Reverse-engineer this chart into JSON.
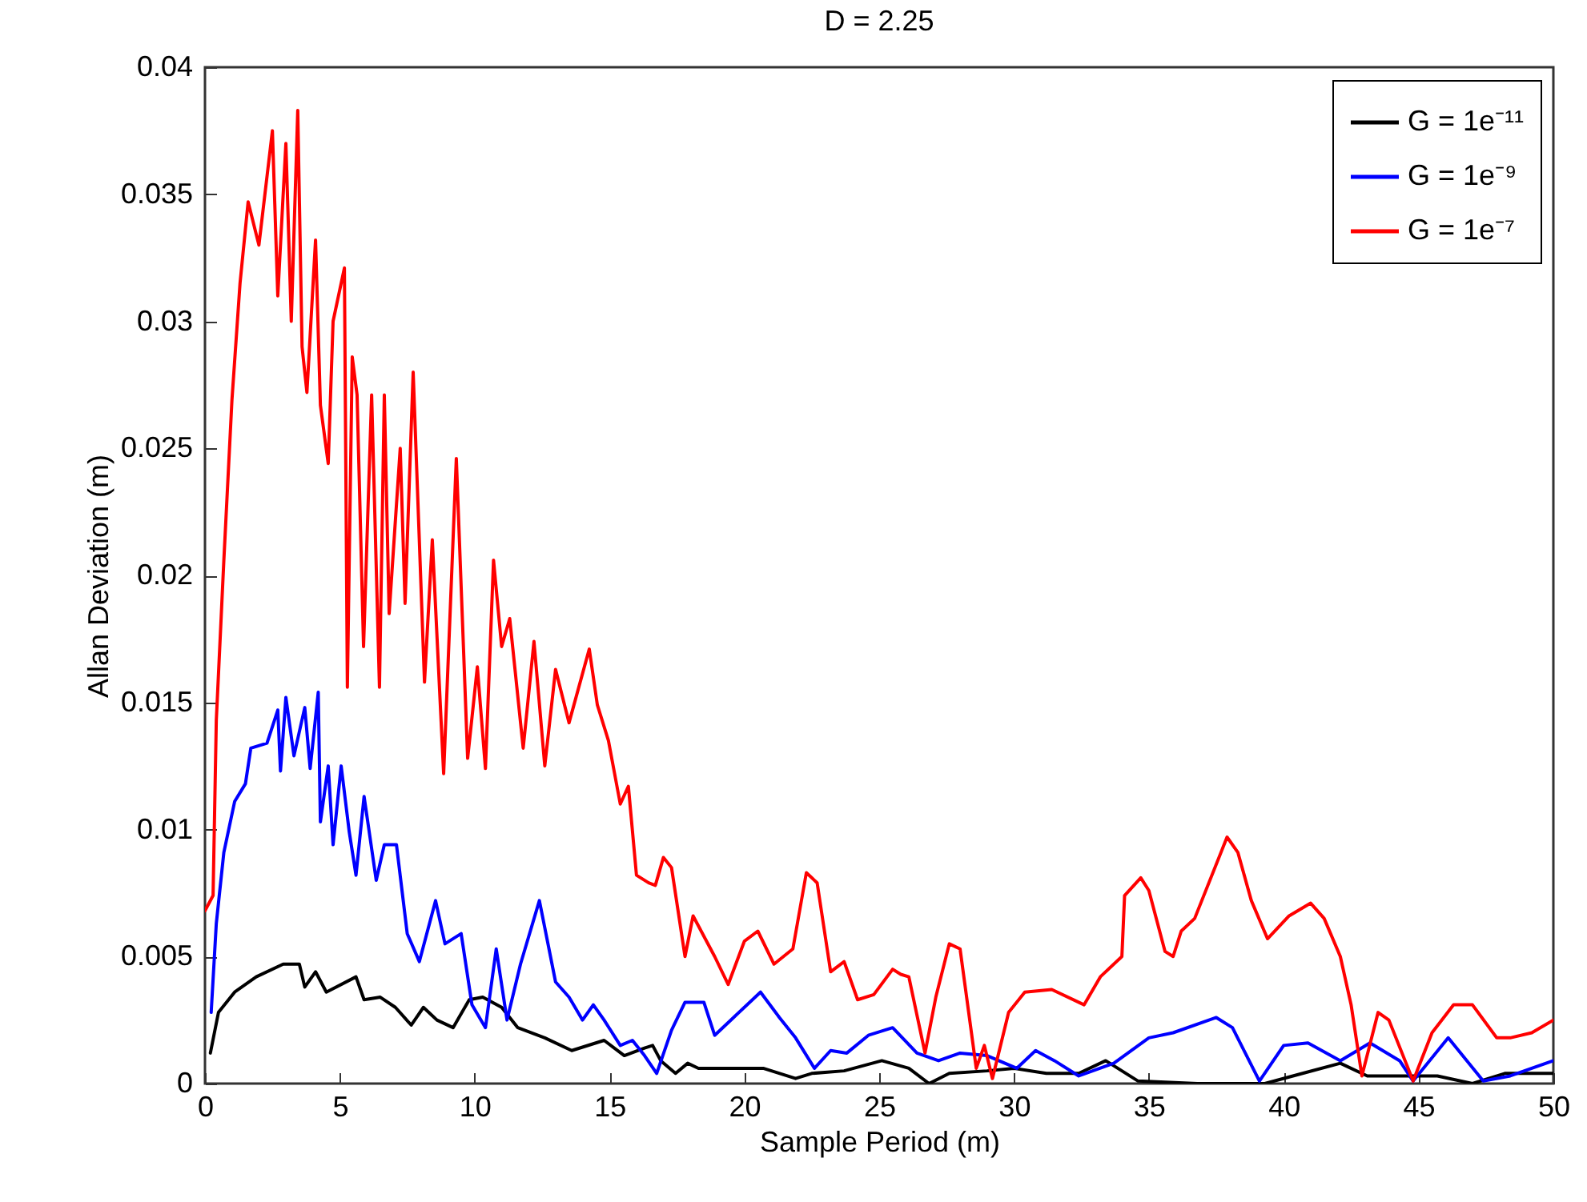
{
  "chart_data": {
    "type": "line",
    "title": "D = 2.25",
    "xlabel": "Sample Period (m)",
    "ylabel": "Allan Deviation (m)",
    "xlim": [
      0,
      50
    ],
    "xticks": [
      0,
      5,
      10,
      15,
      20,
      25,
      30,
      35,
      40,
      45,
      50
    ],
    "ylim": [
      0,
      0.04
    ],
    "yticks": [
      0,
      0.005,
      0.01,
      0.015,
      0.02,
      0.025,
      0.03,
      0.035,
      0.04
    ],
    "grid": false,
    "legend": "top right",
    "marker": "none",
    "line_style": "solid",
    "series": [
      {
        "name": "G = 1e⁻¹¹",
        "color": "#000000",
        "x": [
          0.2,
          0.5,
          1.1,
          1.9,
          2.9,
          3.5,
          3.7,
          4.1,
          4.5,
          5.6,
          5.9,
          6.5,
          7.06,
          7.65,
          8.1,
          8.6,
          9.2,
          9.8,
          10.3,
          11.0,
          11.6,
          12.6,
          13.6,
          14.8,
          15.55,
          16.3,
          16.6,
          16.9,
          17.45,
          17.9,
          18.3,
          19.9,
          20.7,
          21.9,
          22.5,
          23.7,
          25.1,
          26.1,
          26.85,
          27.6,
          29.0,
          30.0,
          31.2,
          32.4,
          33.4,
          34.6,
          36.8,
          39.3,
          40.7,
          42.1,
          43.1,
          44.7,
          45.7,
          47.0,
          48.2,
          50
        ],
        "values": [
          0.0012,
          0.0028,
          0.0036,
          0.0042,
          0.0047,
          0.0047,
          0.0038,
          0.0044,
          0.0036,
          0.0042,
          0.0033,
          0.0034,
          0.003,
          0.0023,
          0.003,
          0.0025,
          0.0022,
          0.0033,
          0.0034,
          0.003,
          0.0022,
          0.0018,
          0.0013,
          0.0017,
          0.0011,
          0.0014,
          0.0015,
          0.0009,
          0.0004,
          0.0008,
          0.0006,
          0.0006,
          0.0006,
          0.0002,
          0.0004,
          0.0005,
          0.0009,
          0.0006,
          0.0,
          0.0004,
          0.0005,
          0.0006,
          0.0004,
          0.0004,
          0.0009,
          0.0001,
          0.0,
          0.0,
          0.0004,
          0.0008,
          0.0003,
          0.0003,
          0.0003,
          0.0,
          0.0004,
          0.0004
        ]
      },
      {
        "name": "G = 1e⁻⁹",
        "color": "#0000ff",
        "x": [
          0.23,
          0.42,
          0.7,
          1.1,
          1.5,
          1.7,
          2.3,
          2.7,
          2.8,
          3.0,
          3.3,
          3.7,
          3.9,
          4.2,
          4.28,
          4.57,
          4.75,
          5.05,
          5.35,
          5.6,
          5.9,
          6.35,
          6.65,
          7.1,
          7.5,
          7.95,
          8.55,
          8.9,
          9.5,
          9.9,
          10.4,
          10.8,
          11.2,
          11.7,
          12.4,
          13.0,
          13.5,
          14.0,
          14.4,
          14.8,
          15.4,
          15.85,
          16.3,
          16.75,
          17.3,
          17.8,
          18.5,
          18.9,
          19.6,
          20.6,
          21.3,
          21.9,
          22.6,
          23.2,
          23.8,
          24.6,
          25.5,
          26.4,
          27.2,
          28.0,
          29.0,
          30.1,
          30.8,
          31.5,
          32.4,
          33.7,
          35.0,
          35.9,
          37.5,
          38.1,
          39.1,
          40.0,
          40.9,
          42.1,
          43.2,
          44.3,
          44.8,
          46.1,
          47.4,
          48.4,
          50
        ],
        "values": [
          0.0028,
          0.0063,
          0.0091,
          0.0111,
          0.0118,
          0.0132,
          0.0134,
          0.0147,
          0.0123,
          0.0152,
          0.0129,
          0.0148,
          0.0124,
          0.0154,
          0.0103,
          0.0125,
          0.0094,
          0.0125,
          0.0099,
          0.0082,
          0.0113,
          0.008,
          0.0094,
          0.0094,
          0.0059,
          0.0048,
          0.0072,
          0.0055,
          0.0059,
          0.0031,
          0.0022,
          0.0053,
          0.0025,
          0.0047,
          0.0072,
          0.004,
          0.0034,
          0.0025,
          0.0031,
          0.0025,
          0.0015,
          0.0017,
          0.0011,
          0.0004,
          0.0021,
          0.0032,
          0.0032,
          0.0019,
          0.0026,
          0.0036,
          0.0026,
          0.0018,
          0.0006,
          0.0013,
          0.0012,
          0.0019,
          0.0022,
          0.0012,
          0.0009,
          0.0012,
          0.0011,
          0.0006,
          0.0013,
          0.0009,
          0.0003,
          0.0008,
          0.0018,
          0.002,
          0.0026,
          0.0022,
          0.0001,
          0.0015,
          0.0016,
          0.0009,
          0.0016,
          0.0009,
          0.0001,
          0.0018,
          0.0001,
          0.0003,
          0.0009
        ]
      },
      {
        "name": "G = 1e⁻⁷",
        "color": "#ff0000",
        "x": [
          0.0,
          0.3,
          0.42,
          0.7,
          1.0,
          1.3,
          1.6,
          2.0,
          2.5,
          2.7,
          3.0,
          3.2,
          3.44,
          3.6,
          3.78,
          4.1,
          4.28,
          4.57,
          4.75,
          5.17,
          5.28,
          5.46,
          5.64,
          5.88,
          6.18,
          6.47,
          6.65,
          6.83,
          7.24,
          7.42,
          7.72,
          8.14,
          8.43,
          8.85,
          9.32,
          9.74,
          10.1,
          10.4,
          10.7,
          11.0,
          11.3,
          11.8,
          12.2,
          12.6,
          13.0,
          13.5,
          14.25,
          14.55,
          14.96,
          15.4,
          15.7,
          16.0,
          16.45,
          16.7,
          17.0,
          17.3,
          17.8,
          18.1,
          18.9,
          19.4,
          20.0,
          20.5,
          21.1,
          21.8,
          22.3,
          22.7,
          23.2,
          23.7,
          24.2,
          24.8,
          25.5,
          25.8,
          26.1,
          26.7,
          27.1,
          27.6,
          28.0,
          28.6,
          28.9,
          29.2,
          29.8,
          30.4,
          31.4,
          32.6,
          33.2,
          34.0,
          34.1,
          34.7,
          35.0,
          35.6,
          35.9,
          36.2,
          36.7,
          37.9,
          38.3,
          38.8,
          39.4,
          40.2,
          41.0,
          41.5,
          42.1,
          42.5,
          42.9,
          43.5,
          43.9,
          44.8,
          45.5,
          46.3,
          47.0,
          47.9,
          48.4,
          49.2,
          50
        ],
        "values": [
          0.0068,
          0.0074,
          0.0143,
          0.0206,
          0.0269,
          0.0315,
          0.0347,
          0.033,
          0.0375,
          0.031,
          0.037,
          0.03,
          0.0383,
          0.029,
          0.0272,
          0.0332,
          0.0267,
          0.0244,
          0.03,
          0.0321,
          0.0156,
          0.0286,
          0.0271,
          0.0172,
          0.0271,
          0.0156,
          0.0271,
          0.0185,
          0.025,
          0.0189,
          0.028,
          0.0158,
          0.0214,
          0.0122,
          0.0246,
          0.0128,
          0.0164,
          0.0124,
          0.0206,
          0.0172,
          0.0183,
          0.0132,
          0.0174,
          0.0125,
          0.0163,
          0.0142,
          0.0171,
          0.0149,
          0.0135,
          0.011,
          0.0117,
          0.0082,
          0.0079,
          0.0078,
          0.0089,
          0.0085,
          0.005,
          0.0066,
          0.005,
          0.0039,
          0.0056,
          0.006,
          0.0047,
          0.0053,
          0.0083,
          0.0079,
          0.0044,
          0.0048,
          0.0033,
          0.0035,
          0.0045,
          0.0043,
          0.0042,
          0.0012,
          0.0034,
          0.0055,
          0.0053,
          0.0006,
          0.0015,
          0.0002,
          0.0028,
          0.0036,
          0.0037,
          0.0031,
          0.0042,
          0.005,
          0.0074,
          0.0081,
          0.0076,
          0.0052,
          0.005,
          0.006,
          0.0065,
          0.0097,
          0.0091,
          0.0072,
          0.0057,
          0.0066,
          0.0071,
          0.0065,
          0.005,
          0.0031,
          0.0003,
          0.0028,
          0.0025,
          0.0001,
          0.002,
          0.0031,
          0.0031,
          0.0018,
          0.0018,
          0.002,
          0.0025
        ]
      }
    ]
  }
}
